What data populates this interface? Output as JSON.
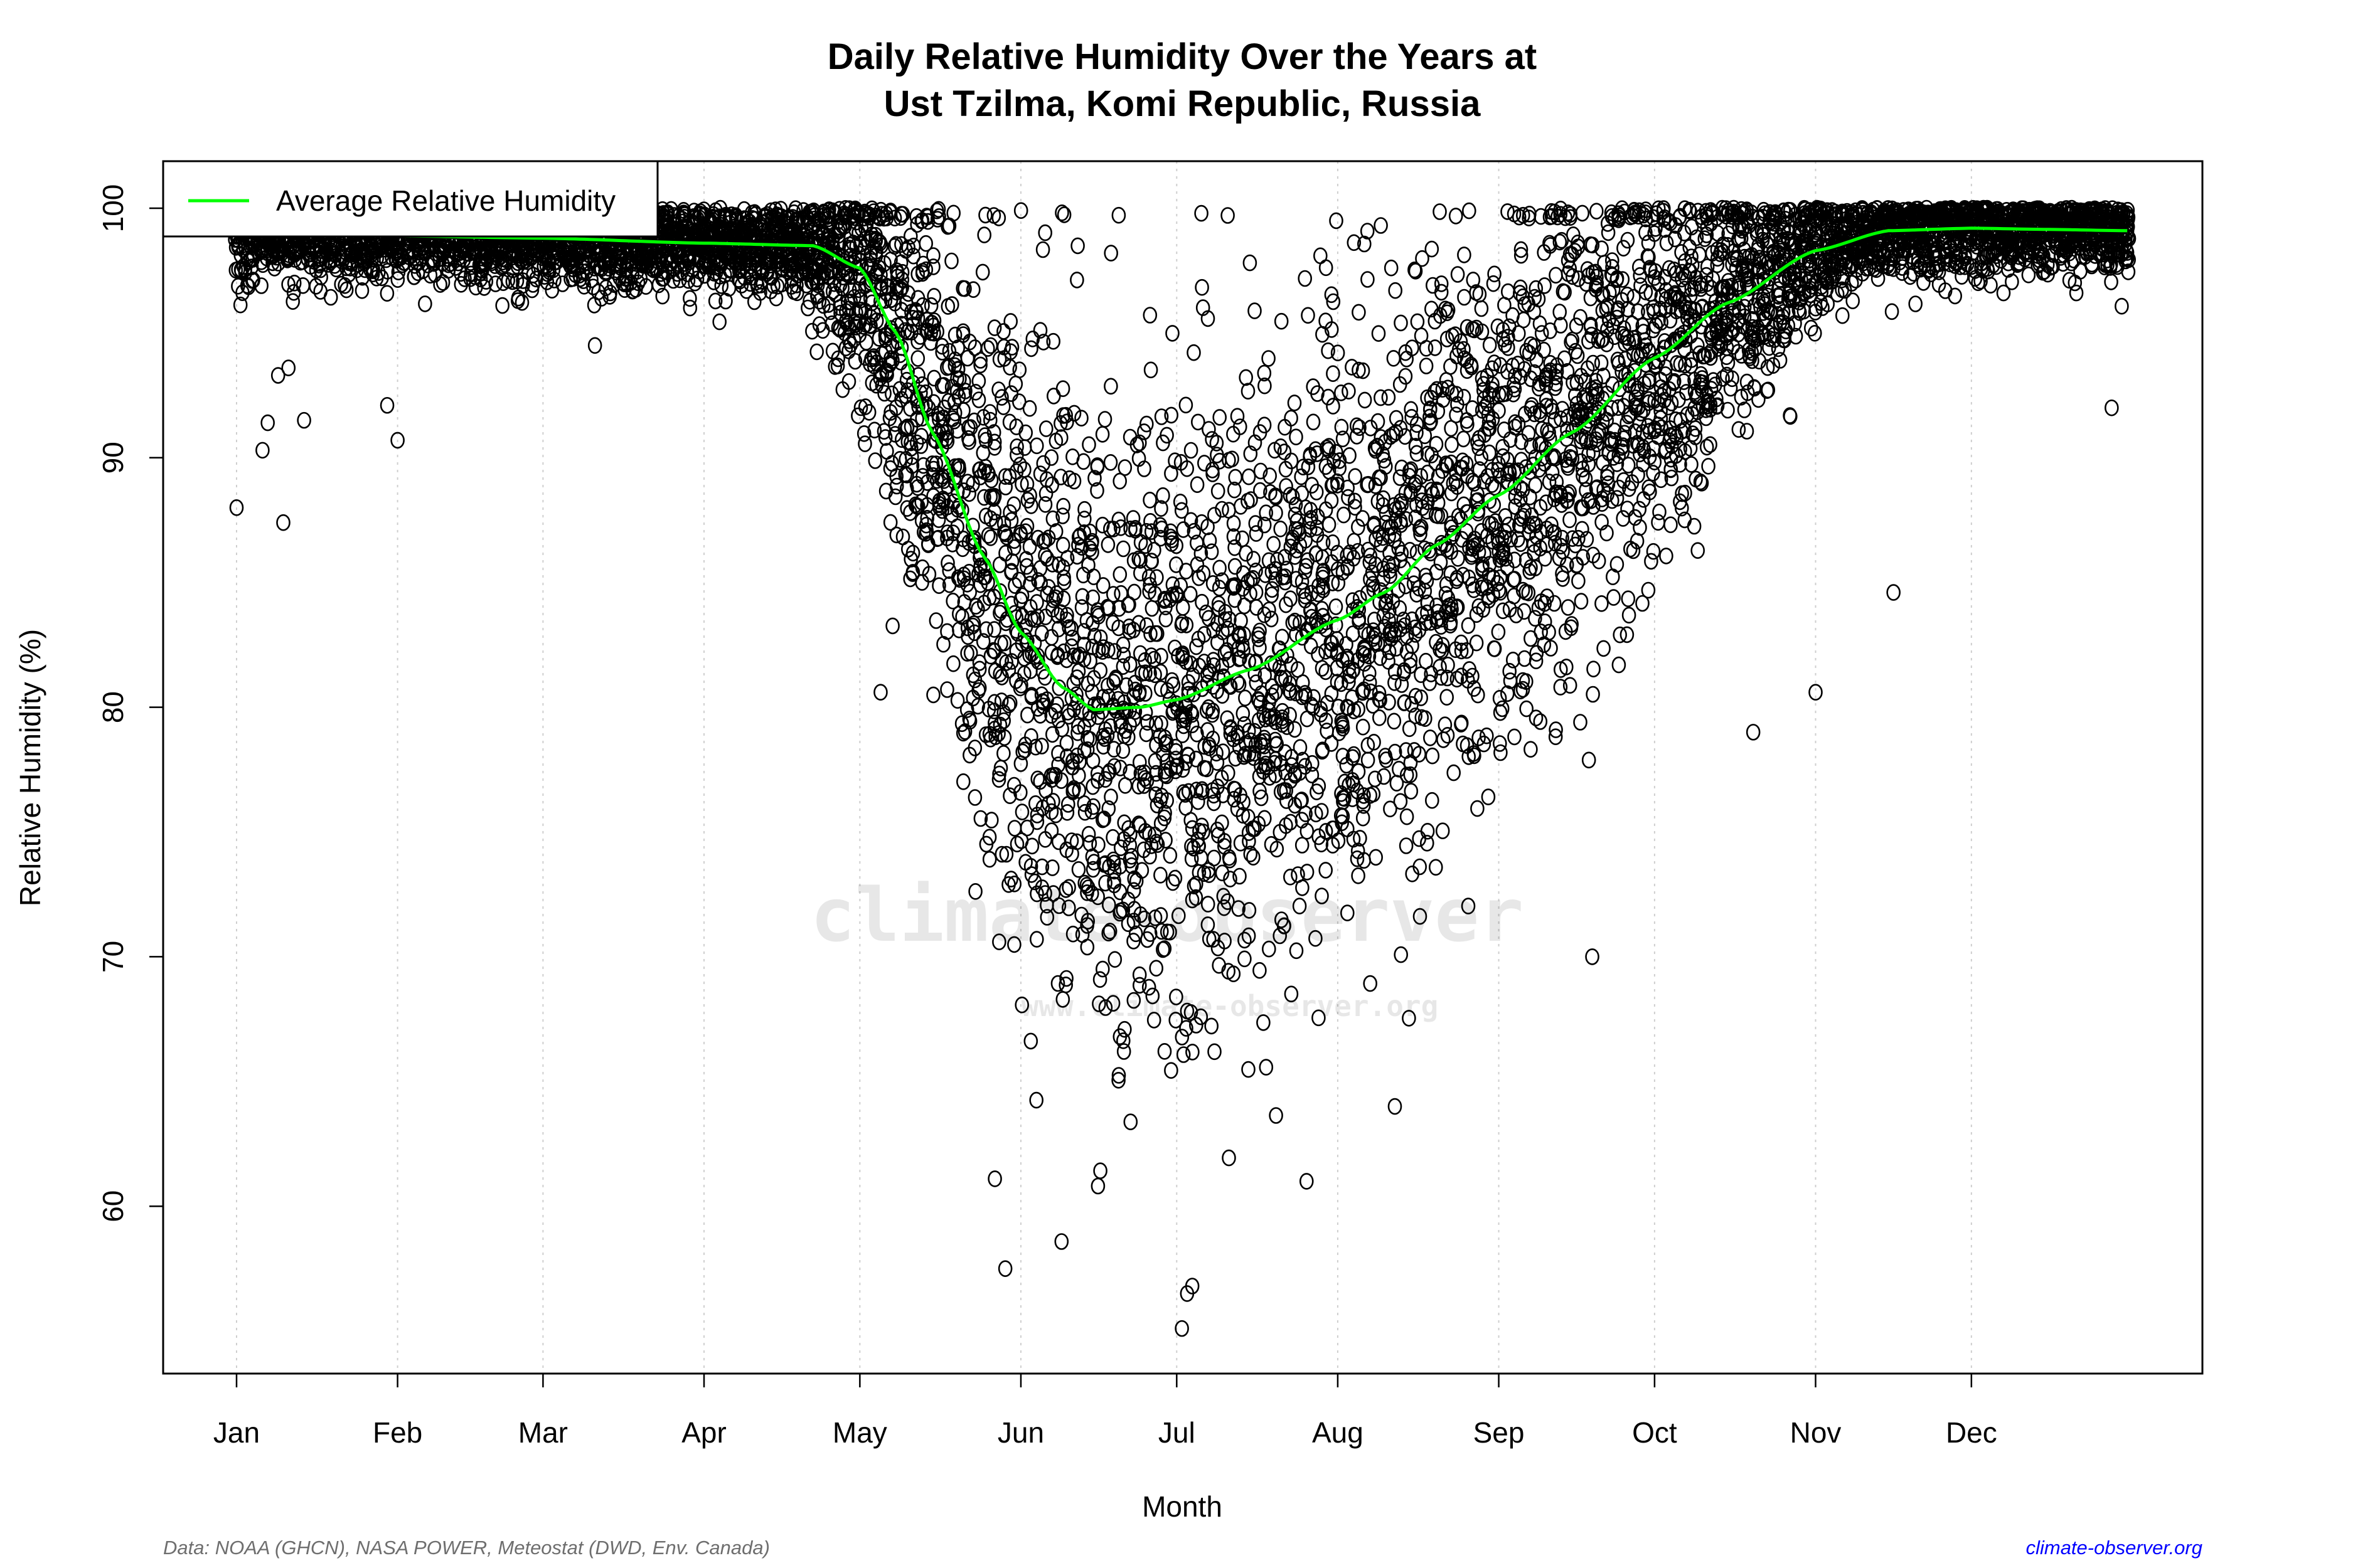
{
  "chart_data": {
    "type": "scatter",
    "title": "Daily Relative Humidity Over the Years at",
    "subtitle": "Ust Tzilma, Komi Republic, Russia",
    "xlabel": "Month",
    "ylabel": "Relative Humidity  (%)",
    "x_ticks": [
      {
        "label": "Jan",
        "day": 1
      },
      {
        "label": "Feb",
        "day": 32
      },
      {
        "label": "Mar",
        "day": 60
      },
      {
        "label": "Apr",
        "day": 91
      },
      {
        "label": "May",
        "day": 121
      },
      {
        "label": "Jun",
        "day": 152
      },
      {
        "label": "Jul",
        "day": 182
      },
      {
        "label": "Aug",
        "day": 213
      },
      {
        "label": "Sep",
        "day": 244
      },
      {
        "label": "Oct",
        "day": 274
      },
      {
        "label": "Nov",
        "day": 305
      },
      {
        "label": "Dec",
        "day": 335
      }
    ],
    "y_ticks": [
      60,
      70,
      80,
      90,
      100
    ],
    "ylim": [
      53.3,
      101.9
    ],
    "xlim_days": [
      1,
      365
    ],
    "grid": "vertical dotted at month ticks",
    "legend": {
      "placement": "top-left",
      "entries": [
        {
          "label": "Average Relative Humidity",
          "color": "#00ff00"
        }
      ]
    },
    "point_style": {
      "shape": "open-circle",
      "color": "#000000"
    },
    "series": [
      {
        "name": "Average Relative Humidity",
        "color": "#00ff00",
        "points": [
          [
            1,
            99.0
          ],
          [
            30,
            98.9
          ],
          [
            60,
            98.8
          ],
          [
            91,
            98.6
          ],
          [
            112,
            98.5
          ],
          [
            121,
            97.6
          ],
          [
            128,
            95
          ],
          [
            135,
            91
          ],
          [
            145,
            86
          ],
          [
            152,
            83
          ],
          [
            160,
            80.8
          ],
          [
            166,
            79.9
          ],
          [
            175,
            80
          ],
          [
            182,
            80.3
          ],
          [
            196,
            81.5
          ],
          [
            213,
            83.5
          ],
          [
            222,
            84.6
          ],
          [
            232,
            86.5
          ],
          [
            244,
            88.5
          ],
          [
            258,
            91
          ],
          [
            274,
            94
          ],
          [
            288,
            96.2
          ],
          [
            305,
            98.3
          ],
          [
            319,
            99.1
          ],
          [
            335,
            99.2
          ],
          [
            350,
            99.15
          ],
          [
            365,
            99.1
          ]
        ]
      }
    ],
    "notable_points": [
      [
        1,
        88
      ],
      [
        6,
        90.3
      ],
      [
        7,
        91.4
      ],
      [
        10,
        87.4
      ],
      [
        9,
        93.3
      ],
      [
        11,
        93.6
      ],
      [
        14,
        91.5
      ],
      [
        30,
        92.1
      ],
      [
        32,
        90.7
      ],
      [
        70,
        94.5
      ],
      [
        125,
        80.6
      ],
      [
        149,
        57.5
      ],
      [
        147,
        61.1
      ],
      [
        183,
        55.1
      ],
      [
        184,
        56.5
      ],
      [
        185,
        56.8
      ],
      [
        207,
        61
      ],
      [
        224,
        64
      ],
      [
        262,
        70
      ],
      [
        293,
        79
      ],
      [
        320,
        84.6
      ],
      [
        305,
        80.6
      ],
      [
        362,
        92
      ]
    ]
  },
  "watermark": {
    "main": "climate-observer",
    "url": "www.climate-observer.org"
  },
  "footer": {
    "source": "Data: NOAA (GHCN), NASA POWER, Meteostat (DWD, Env. Canada)",
    "site": "climate-observer.org",
    "site_color": "#0000ff",
    "source_color": "#6e6e6e"
  }
}
